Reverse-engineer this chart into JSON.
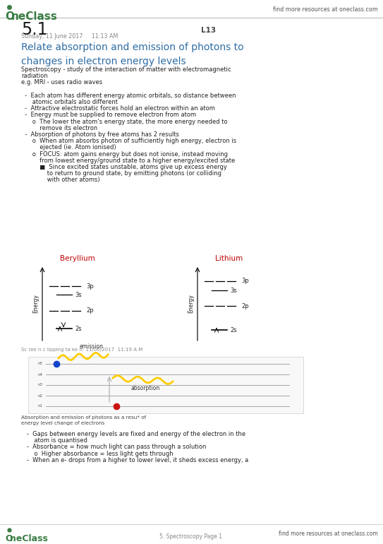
{
  "bg_color": "#ffffff",
  "oneclass_green": "#3a7d44",
  "header_text": "find more resources at oneclass.com",
  "footer_text": "find more resources at oneclass.com",
  "footer_page": "5. Spectroscopy Page 1",
  "page_num": "5.1",
  "date_text": "Sunday, 11 June 2017     11:13 AM",
  "lecture_num": "L13",
  "section_title": "Relate absorption and emission of photons to\nchanges in electron energy levels",
  "section_title_color": "#2e6da4",
  "body_text": [
    [
      "Spectroscopy - study of the interaction of matter with electromagnetic",
      0,
      6.0,
      "#222222"
    ],
    [
      "radiation",
      0,
      6.0,
      "#222222"
    ],
    [
      "e.g. MRI - uses radio waves",
      0,
      6.0,
      "#222222"
    ],
    [
      "",
      0,
      6.0,
      "#222222"
    ],
    [
      "  -  Each atom has different energy atomic orbitals, so distance between",
      0,
      6.0,
      "#222222"
    ],
    [
      "      atomic orbitals also different",
      0,
      6.0,
      "#222222"
    ],
    [
      "  -  Attractive electrostatic forces hold an electron within an atom",
      0,
      6.0,
      "#222222"
    ],
    [
      "  -  Energy must be supplied to remove electron from atom",
      0,
      6.0,
      "#222222"
    ],
    [
      "      o  The lower the atom’s energy state, the more energy needed to",
      0,
      6.0,
      "#222222"
    ],
    [
      "          remove its electron",
      0,
      6.0,
      "#222222"
    ],
    [
      "  -  Absorption of photons by free atoms has 2 results",
      0,
      6.0,
      "#222222"
    ],
    [
      "      o  When atom absorbs photon of sufficiently high energy, electron is",
      0,
      6.0,
      "#222222"
    ],
    [
      "          ejected (ie. Atom ionised)",
      0,
      6.0,
      "#222222"
    ],
    [
      "      o  FOCUS: atom gains energy but does not ionise, instead moving",
      0,
      6.0,
      "#222222"
    ],
    [
      "          from lowest energy/ground state to a higher energy/excited state",
      0,
      6.0,
      "#222222"
    ],
    [
      "          ■  Since excited states unstable, atoms give up excess energy",
      0,
      6.0,
      "#222222"
    ],
    [
      "              to return to ground state, by emitting photons (or colliding",
      0,
      6.0,
      "#222222"
    ],
    [
      "              with other atoms)",
      0,
      6.0,
      "#222222"
    ]
  ],
  "diagram_caption": "Sc ree n c lipping ta ke n: 11/06/2017  11:19 A M",
  "diagram_subcaption1": "Absorption and emission of photons as a resu* of",
  "diagram_subcaption2": "energy level change of electrons",
  "bottom_text": [
    "   -  Gaps between energy levels are fixed and energy of the electron in the",
    "       atom is quantised",
    "   -  Absorbance = how much light can pass through a solution",
    "       o  Higher absorbance = less light gets through",
    "   -  When an e- drops from a higher to lower level, it sheds excess energy, a"
  ]
}
